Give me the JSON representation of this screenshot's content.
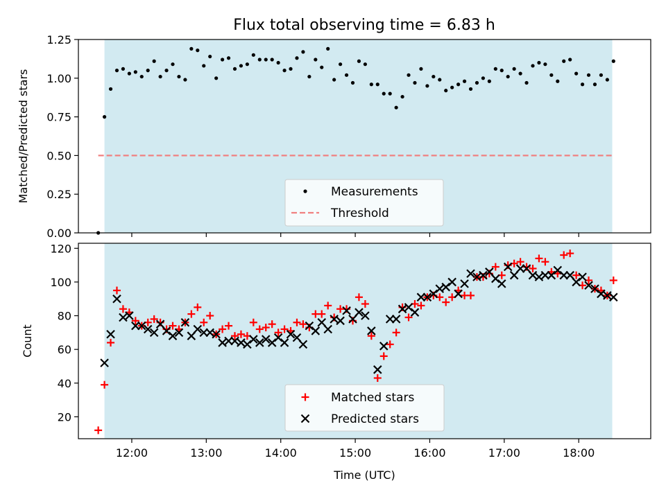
{
  "title": "Flux total observing time = 6.83 h",
  "colors": {
    "shade": "#add8e6",
    "measurement": "#000000",
    "threshold": "#f08080",
    "matched": "#ff0000",
    "predicted": "#000000"
  },
  "chart_data": [
    {
      "type": "scatter",
      "title": "Flux total observing time = 6.83 h",
      "xlabel": "",
      "ylabel": "Matched/Predicted stars",
      "xlim": [
        "11:17",
        "18:58"
      ],
      "ylim": [
        0,
        1.25
      ],
      "yticks": [
        "0.00",
        "0.25",
        "0.50",
        "0.75",
        "1.00",
        "1.25"
      ],
      "shaded_span": [
        "11:38",
        "18:27"
      ],
      "threshold": 0.5,
      "legend": {
        "position": "lower center",
        "entries": [
          "Measurements",
          "Threshold"
        ]
      },
      "series": [
        {
          "name": "Measurements",
          "x": [
            "11:33",
            "11:38",
            "11:43",
            "11:48",
            "11:53",
            "11:58",
            "12:03",
            "12:08",
            "12:13",
            "12:18",
            "12:23",
            "12:28",
            "12:33",
            "12:38",
            "12:43",
            "12:48",
            "12:53",
            "12:58",
            "13:03",
            "13:08",
            "13:13",
            "13:18",
            "13:23",
            "13:28",
            "13:33",
            "13:38",
            "13:43",
            "13:48",
            "13:53",
            "13:58",
            "14:03",
            "14:08",
            "14:13",
            "14:18",
            "14:23",
            "14:28",
            "14:33",
            "14:38",
            "14:43",
            "14:48",
            "14:53",
            "14:58",
            "15:03",
            "15:08",
            "15:13",
            "15:18",
            "15:23",
            "15:28",
            "15:33",
            "15:38",
            "15:43",
            "15:48",
            "15:53",
            "15:58",
            "16:03",
            "16:08",
            "16:13",
            "16:18",
            "16:23",
            "16:28",
            "16:33",
            "16:38",
            "16:43",
            "16:48",
            "16:53",
            "16:58",
            "17:03",
            "17:08",
            "17:13",
            "17:18",
            "17:23",
            "17:28",
            "17:33",
            "17:38",
            "17:43",
            "17:48",
            "17:53",
            "17:58",
            "18:03",
            "18:08",
            "18:13",
            "18:18",
            "18:23",
            "18:28"
          ],
          "values": [
            0.0,
            0.75,
            0.93,
            1.05,
            1.06,
            1.03,
            1.04,
            1.01,
            1.05,
            1.11,
            1.01,
            1.05,
            1.09,
            1.01,
            0.99,
            1.19,
            1.18,
            1.08,
            1.14,
            1.0,
            1.12,
            1.13,
            1.06,
            1.08,
            1.09,
            1.15,
            1.12,
            1.12,
            1.12,
            1.1,
            1.05,
            1.06,
            1.13,
            1.17,
            1.01,
            1.12,
            1.07,
            1.19,
            0.99,
            1.09,
            1.02,
            0.97,
            1.11,
            1.09,
            0.96,
            0.96,
            0.9,
            0.9,
            0.81,
            0.88,
            1.02,
            0.97,
            1.06,
            0.95,
            1.01,
            0.99,
            0.92,
            0.94,
            0.96,
            0.98,
            0.93,
            0.97,
            1.0,
            0.98,
            1.06,
            1.05,
            1.01,
            1.06,
            1.03,
            0.97,
            1.08,
            1.1,
            1.09,
            1.02,
            0.98,
            1.11,
            1.12,
            1.03,
            0.96,
            1.02,
            0.96,
            1.02,
            0.99,
            1.11
          ]
        }
      ]
    },
    {
      "type": "scatter",
      "xlabel": "Time (UTC)",
      "ylabel": "Count",
      "xlim": [
        "11:17",
        "18:58"
      ],
      "ylim": [
        7,
        123
      ],
      "xticks": [
        "12:00",
        "13:00",
        "14:00",
        "15:00",
        "16:00",
        "17:00",
        "18:00"
      ],
      "yticks": [
        "20",
        "40",
        "60",
        "80",
        "100",
        "120"
      ],
      "shaded_span": [
        "11:38",
        "18:27"
      ],
      "legend": {
        "position": "lower center",
        "entries": [
          "Matched stars",
          "Predicted stars"
        ]
      },
      "series": [
        {
          "name": "Matched stars",
          "x": [
            "11:33",
            "11:38",
            "11:43",
            "11:48",
            "11:53",
            "11:58",
            "12:03",
            "12:08",
            "12:13",
            "12:18",
            "12:23",
            "12:28",
            "12:33",
            "12:38",
            "12:43",
            "12:48",
            "12:53",
            "12:58",
            "13:03",
            "13:08",
            "13:13",
            "13:18",
            "13:23",
            "13:28",
            "13:33",
            "13:38",
            "13:43",
            "13:48",
            "13:53",
            "13:58",
            "14:03",
            "14:08",
            "14:13",
            "14:18",
            "14:23",
            "14:28",
            "14:33",
            "14:38",
            "14:43",
            "14:48",
            "14:53",
            "14:58",
            "15:03",
            "15:08",
            "15:13",
            "15:18",
            "15:23",
            "15:28",
            "15:33",
            "15:38",
            "15:43",
            "15:48",
            "15:53",
            "15:58",
            "16:03",
            "16:08",
            "16:13",
            "16:18",
            "16:23",
            "16:28",
            "16:33",
            "16:38",
            "16:43",
            "16:48",
            "16:53",
            "16:58",
            "17:03",
            "17:08",
            "17:13",
            "17:18",
            "17:23",
            "17:28",
            "17:33",
            "17:38",
            "17:43",
            "17:48",
            "17:53",
            "17:58",
            "18:03",
            "18:08",
            "18:13",
            "18:18",
            "18:23",
            "18:28"
          ],
          "values": [
            12,
            39,
            64,
            95,
            84,
            82,
            77,
            74,
            76,
            78,
            76,
            72,
            74,
            72,
            76,
            81,
            85,
            76,
            80,
            69,
            72,
            74,
            68,
            69,
            68,
            76,
            72,
            73,
            75,
            70,
            72,
            71,
            76,
            75,
            73,
            81,
            81,
            86,
            79,
            84,
            84,
            77,
            91,
            87,
            68,
            43,
            56,
            63,
            70,
            85,
            79,
            87,
            86,
            91,
            92,
            91,
            88,
            91,
            95,
            92,
            92,
            103,
            103,
            105,
            109,
            104,
            110,
            111,
            112,
            109,
            108,
            114,
            112,
            106,
            105,
            116,
            117,
            104,
            98,
            101,
            96,
            95,
            92,
            101
          ]
        },
        {
          "name": "Predicted stars",
          "x": [
            "11:38",
            "11:43",
            "11:48",
            "11:53",
            "11:58",
            "12:03",
            "12:08",
            "12:13",
            "12:18",
            "12:23",
            "12:28",
            "12:33",
            "12:38",
            "12:43",
            "12:48",
            "12:53",
            "12:58",
            "13:03",
            "13:08",
            "13:13",
            "13:18",
            "13:23",
            "13:28",
            "13:33",
            "13:38",
            "13:43",
            "13:48",
            "13:53",
            "13:58",
            "14:03",
            "14:08",
            "14:13",
            "14:18",
            "14:23",
            "14:28",
            "14:33",
            "14:38",
            "14:43",
            "14:48",
            "14:53",
            "14:58",
            "15:03",
            "15:08",
            "15:13",
            "15:18",
            "15:23",
            "15:28",
            "15:33",
            "15:38",
            "15:43",
            "15:48",
            "15:53",
            "15:58",
            "16:03",
            "16:08",
            "16:13",
            "16:18",
            "16:23",
            "16:28",
            "16:33",
            "16:38",
            "16:43",
            "16:48",
            "16:53",
            "16:58",
            "17:03",
            "17:08",
            "17:13",
            "17:18",
            "17:23",
            "17:28",
            "17:33",
            "17:38",
            "17:43",
            "17:48",
            "17:53",
            "17:58",
            "18:03",
            "18:08",
            "18:13",
            "18:18",
            "18:23",
            "18:28"
          ],
          "values": [
            52,
            69,
            90,
            79,
            80,
            74,
            74,
            72,
            70,
            75,
            71,
            68,
            70,
            76,
            68,
            72,
            70,
            70,
            69,
            64,
            65,
            65,
            64,
            63,
            66,
            64,
            66,
            64,
            67,
            64,
            69,
            67,
            63,
            74,
            71,
            76,
            72,
            78,
            77,
            83,
            78,
            82,
            80,
            71,
            48,
            62,
            78,
            78,
            84,
            85,
            82,
            91,
            91,
            93,
            96,
            97,
            100,
            93,
            99,
            105,
            103,
            104,
            106,
            102,
            99,
            109,
            104,
            108,
            108,
            104,
            103,
            104,
            104,
            107,
            104,
            104,
            100,
            103,
            98,
            96,
            93,
            92,
            91
          ]
        }
      ]
    }
  ]
}
